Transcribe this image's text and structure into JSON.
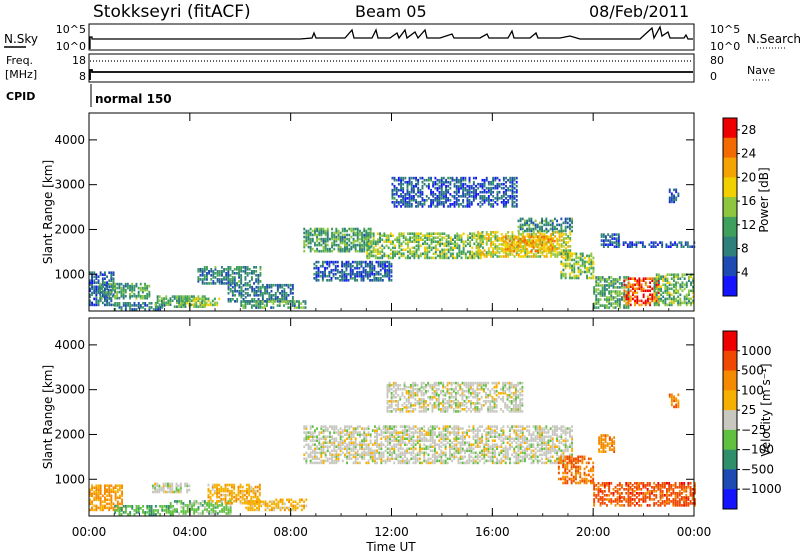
{
  "header": {
    "title": "Stokkseyri (fitACF)",
    "beam": "Beam 05",
    "date": "08/Feb/2011"
  },
  "top_panels": {
    "nsky_label": "N.Sky",
    "nsky_ticks": [
      "10^5",
      "10^0"
    ],
    "nsearch_label": "N.Search",
    "nsearch_ticks": [
      "10^5",
      "10^0"
    ],
    "freq_label_line1": "Freq.",
    "freq_label_line2": "[MHz]",
    "freq_ticks": [
      "18",
      "8"
    ],
    "nave_label": "Nave",
    "nave_ticks": [
      "80",
      "0"
    ],
    "cpid_label": "CPID",
    "cpid_value": "normal 150"
  },
  "colors": {
    "power_scale": [
      "#1414ff",
      "#1e4ab4",
      "#2f7f7a",
      "#3f9f5c",
      "#8ec63f",
      "#f2d000",
      "#f5a300",
      "#f26a00",
      "#ee0000"
    ],
    "velocity_scale": [
      "#1414ff",
      "#1e4ab4",
      "#2f8f6a",
      "#60c040",
      "#c8c8c0",
      "#f5b000",
      "#f58a00",
      "#f04800",
      "#ee0000"
    ]
  },
  "chart_data": [
    {
      "type": "heatmap",
      "quantity": "power",
      "xlabel": "",
      "ylabel": "Slant Range [km]",
      "x_tick_labels": [
        "00:00",
        "04:00",
        "08:00",
        "12:00",
        "16:00",
        "20:00",
        "00:00"
      ],
      "xlim": [
        0,
        24
      ],
      "ylim": [
        180,
        4600
      ],
      "y_ticks": [
        1000,
        2000,
        3000,
        4000
      ],
      "colorbar_label": "Power [dB]",
      "colorbar_ticks": [
        4,
        8,
        12,
        16,
        20,
        24,
        28
      ],
      "colorbar_range": [
        0,
        30
      ],
      "regions": [
        {
          "t0": 0.0,
          "t1": 1.0,
          "r0": 300,
          "r1": 1050,
          "v": 6
        },
        {
          "t0": 0.4,
          "t1": 2.4,
          "r0": 450,
          "r1": 780,
          "v": 11
        },
        {
          "t0": 1.0,
          "t1": 3.0,
          "r0": 200,
          "r1": 360,
          "v": 8
        },
        {
          "t0": 2.6,
          "t1": 4.6,
          "r0": 260,
          "r1": 520,
          "v": 12
        },
        {
          "t0": 3.6,
          "t1": 5.2,
          "r0": 300,
          "r1": 480,
          "v": 15
        },
        {
          "t0": 4.3,
          "t1": 6.8,
          "r0": 780,
          "r1": 1180,
          "v": 9
        },
        {
          "t0": 5.5,
          "t1": 8.1,
          "r0": 380,
          "r1": 760,
          "v": 8
        },
        {
          "t0": 6.0,
          "t1": 8.6,
          "r0": 240,
          "r1": 420,
          "v": 11
        },
        {
          "t0": 8.5,
          "t1": 11.2,
          "r0": 1500,
          "r1": 2000,
          "v": 11
        },
        {
          "t0": 11.0,
          "t1": 15.6,
          "r0": 1350,
          "r1": 1900,
          "v": 14
        },
        {
          "t0": 15.4,
          "t1": 19.1,
          "r0": 1380,
          "r1": 1950,
          "v": 17
        },
        {
          "t0": 16.4,
          "t1": 18.6,
          "r0": 1500,
          "r1": 1850,
          "v": 21
        },
        {
          "t0": 17.0,
          "t1": 19.2,
          "r0": 1950,
          "r1": 2250,
          "v": 10
        },
        {
          "t0": 12.0,
          "t1": 17.0,
          "r0": 2500,
          "r1": 3150,
          "v": 6
        },
        {
          "t0": 8.9,
          "t1": 12.0,
          "r0": 850,
          "r1": 1300,
          "v": 6
        },
        {
          "t0": 18.7,
          "t1": 20.0,
          "r0": 900,
          "r1": 1450,
          "v": 14
        },
        {
          "t0": 20.0,
          "t1": 21.4,
          "r0": 240,
          "r1": 950,
          "v": 12
        },
        {
          "t0": 21.2,
          "t1": 22.6,
          "r0": 300,
          "r1": 900,
          "v": 26
        },
        {
          "t0": 22.4,
          "t1": 24.0,
          "r0": 300,
          "r1": 1000,
          "v": 13
        },
        {
          "t0": 20.3,
          "t1": 21.0,
          "r0": 1600,
          "r1": 1900,
          "v": 6
        },
        {
          "t0": 21.0,
          "t1": 24.0,
          "r0": 1600,
          "r1": 1700,
          "v": 5
        },
        {
          "t0": 23.0,
          "t1": 23.4,
          "r0": 2600,
          "r1": 2900,
          "v": 6
        }
      ]
    },
    {
      "type": "heatmap",
      "quantity": "velocity",
      "xlabel": "Time UT",
      "ylabel": "Slant Range [km]",
      "x_tick_labels": [
        "00:00",
        "04:00",
        "08:00",
        "12:00",
        "16:00",
        "20:00",
        "00:00"
      ],
      "xlim": [
        0,
        24
      ],
      "ylim": [
        180,
        4600
      ],
      "y_ticks": [
        1000,
        2000,
        3000,
        4000
      ],
      "colorbar_label": "Velocity [m s⁻¹]",
      "colorbar_ticks": [
        "1000",
        "500",
        "100",
        "25",
        "−25",
        "−100",
        "−500",
        "−1000"
      ],
      "colorbar_range": [
        0,
        9
      ],
      "regions": [
        {
          "t0": 0.0,
          "t1": 1.3,
          "r0": 300,
          "r1": 850,
          "v": 6.3
        },
        {
          "t0": 1.0,
          "t1": 3.3,
          "r0": 200,
          "r1": 420,
          "v": 3.2
        },
        {
          "t0": 3.2,
          "t1": 5.6,
          "r0": 220,
          "r1": 520,
          "v": 3.6
        },
        {
          "t0": 2.5,
          "t1": 4.0,
          "r0": 700,
          "r1": 900,
          "v": 4.5
        },
        {
          "t0": 4.7,
          "t1": 6.8,
          "r0": 450,
          "r1": 900,
          "v": 5.6
        },
        {
          "t0": 6.2,
          "t1": 8.6,
          "r0": 300,
          "r1": 560,
          "v": 5.5
        },
        {
          "t0": 8.5,
          "t1": 19.2,
          "r0": 1350,
          "r1": 2200,
          "v": 4.5
        },
        {
          "t0": 11.8,
          "t1": 17.2,
          "r0": 2500,
          "r1": 3150,
          "v": 4.5
        },
        {
          "t0": 18.6,
          "t1": 20.0,
          "r0": 900,
          "r1": 1500,
          "v": 7.0
        },
        {
          "t0": 20.0,
          "t1": 24.0,
          "r0": 400,
          "r1": 900,
          "v": 7.4
        },
        {
          "t0": 20.2,
          "t1": 20.8,
          "r0": 1600,
          "r1": 2000,
          "v": 6.5
        },
        {
          "t0": 23.0,
          "t1": 23.4,
          "r0": 2600,
          "r1": 2900,
          "v": 6.5
        }
      ]
    }
  ]
}
